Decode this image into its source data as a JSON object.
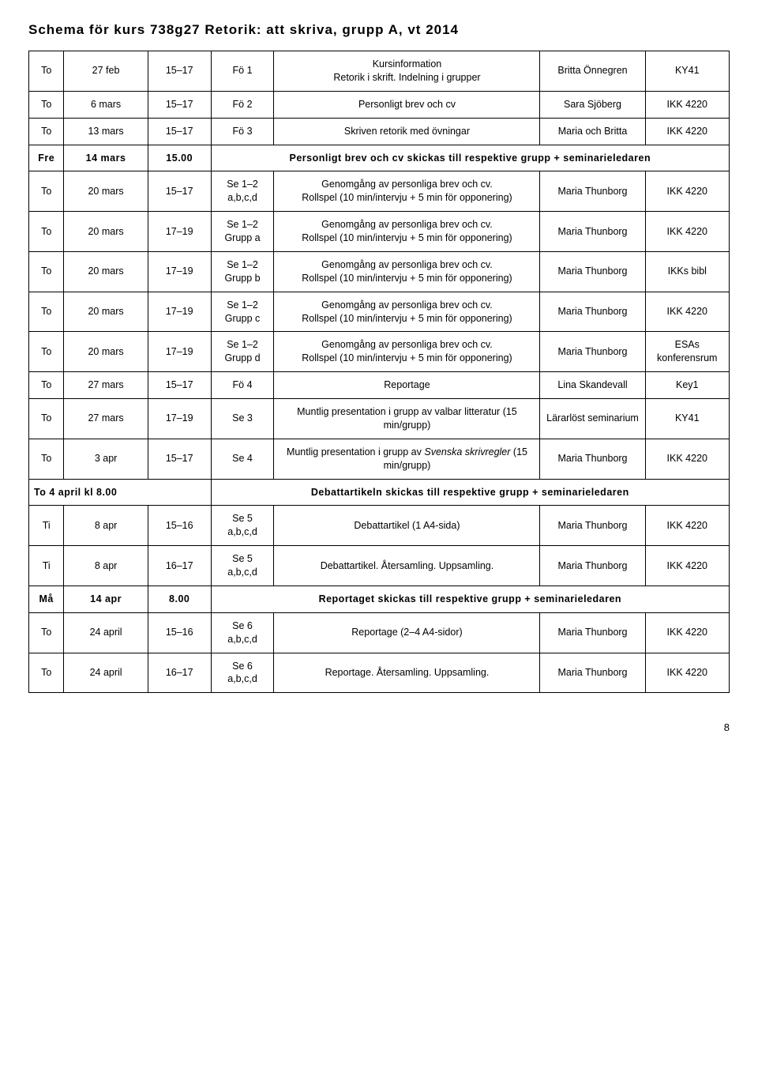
{
  "title": "Schema för kurs  738g27  Retorik: att skriva, grupp A, vt 2014",
  "rows": [
    {
      "c": [
        "To",
        "27 feb",
        "15–17",
        "Fö 1",
        "Kursinformation\nRetorik i skrift. Indelning i grupper",
        "Britta Önnegren",
        "KY41"
      ]
    },
    {
      "c": [
        "To",
        "6 mars",
        "15–17",
        "Fö 2",
        "Personligt brev och cv",
        "Sara Sjöberg",
        "IKK 4220"
      ]
    },
    {
      "c": [
        "To",
        "13 mars",
        "15–17",
        "Fö 3",
        "Skriven retorik med övningar",
        "Maria och Britta",
        "IKK 4220"
      ]
    },
    {
      "span": true,
      "c": [
        "Fre",
        "14 mars",
        "15.00",
        "Personligt brev och cv skickas till respektive grupp + seminarieledaren"
      ],
      "bold": true,
      "spaced": true
    },
    {
      "c": [
        "To",
        "20 mars",
        "15–17",
        "Se 1–2\na,b,c,d",
        "Genomgång av personliga brev och cv.\nRollspel (10 min/intervju + 5 min för opponering)",
        "Maria Thunborg",
        "IKK 4220"
      ]
    },
    {
      "c": [
        "To",
        "20 mars",
        "17–19",
        "Se 1–2\nGrupp a",
        "Genomgång av personliga brev och cv.\nRollspel (10 min/intervju + 5 min för opponering)",
        "Maria Thunborg",
        "IKK 4220"
      ]
    },
    {
      "c": [
        "To",
        "20 mars",
        "17–19",
        "Se 1–2\nGrupp b",
        "Genomgång av personliga brev och cv.\nRollspel (10 min/intervju + 5 min för opponering)",
        "Maria Thunborg",
        "IKKs bibl"
      ]
    },
    {
      "c": [
        "To",
        "20 mars",
        "17–19",
        "Se 1–2\nGrupp c",
        "Genomgång av personliga brev och cv.\nRollspel (10 min/intervju + 5 min för opponering)",
        "Maria Thunborg",
        "IKK 4220"
      ]
    },
    {
      "c": [
        "To",
        "20 mars",
        "17–19",
        "Se 1–2\nGrupp d",
        "Genomgång av personliga brev och cv.\nRollspel (10 min/intervju + 5 min för opponering)",
        "Maria Thunborg",
        "ESAs konferensrum"
      ]
    },
    {
      "c": [
        "To",
        "27 mars",
        "15–17",
        "Fö 4",
        "Reportage",
        "Lina Skandevall",
        "Key1"
      ]
    },
    {
      "c": [
        "To",
        "27 mars",
        "17–19",
        "Se 3",
        "Muntlig presentation i grupp av valbar litteratur (15 min/grupp)",
        "Lärarlöst seminarium",
        "KY41"
      ]
    },
    {
      "c": [
        "To",
        "3 apr",
        "15–17",
        "Se 4",
        "Muntlig presentation i grupp av <i>Svenska skrivregler</i> (15 min/grupp)",
        "Maria Thunborg",
        "IKK 4220"
      ]
    },
    {
      "span": true,
      "c": [
        "To 4 april kl 8.00",
        "",
        "",
        "Debattartikeln skickas till respektive grupp + seminarieledaren"
      ],
      "bold": true,
      "spaced": true,
      "merge3": true
    },
    {
      "c": [
        "Ti",
        "8 apr",
        "15–16",
        "Se 5\na,b,c,d",
        "Debattartikel (1 A4-sida)",
        "Maria Thunborg",
        "IKK 4220"
      ]
    },
    {
      "c": [
        "Ti",
        "8 apr",
        "16–17",
        "Se 5\na,b,c,d",
        "Debattartikel. Återsamling. Uppsamling.",
        "Maria Thunborg",
        "IKK 4220"
      ]
    },
    {
      "span": true,
      "c": [
        "Må",
        "14 apr",
        "8.00",
        "Reportaget skickas till respektive grupp + seminarieledaren"
      ],
      "bold": true,
      "spaced": true
    },
    {
      "c": [
        "To",
        "24 april",
        "15–16",
        "Se 6\na,b,c,d",
        "Reportage (2–4 A4-sidor)",
        "Maria Thunborg",
        "IKK 4220"
      ]
    },
    {
      "c": [
        "To",
        "24 april",
        "16–17",
        "Se 6\na,b,c,d",
        "Reportage. Återsamling. Uppsamling.",
        "Maria Thunborg",
        "IKK 4220"
      ]
    }
  ],
  "pagenum": "8"
}
